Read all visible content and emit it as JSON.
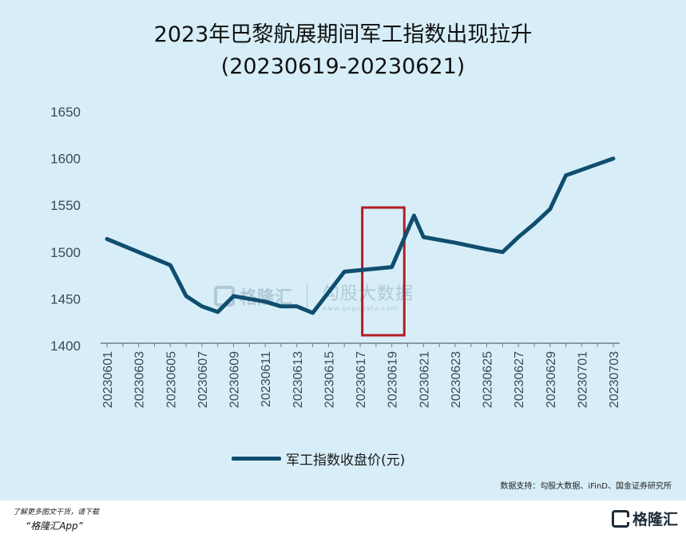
{
  "title": {
    "line1": "2023年巴黎航展期间军工指数出现拉升",
    "line2": "(20230619-20230621)"
  },
  "legend": {
    "label": "军工指数收盘价(元)"
  },
  "source": "数据支持：勾股大数据、iFinD、国金证券研究所",
  "footer": {
    "note": "了解更多图文干货，请下载",
    "app": "“格隆汇App”"
  },
  "logo": {
    "name": "格隆汇"
  },
  "watermark": {
    "name": "格隆汇",
    "brand": "勾股大数据",
    "url": "www.gogudata.com"
  },
  "colors": {
    "background": "#d7eef8",
    "line": "#0f4e6e",
    "highlight_box": "#b01e23",
    "axis": "#6f7f88"
  },
  "chart_data": {
    "type": "line",
    "title": "2023年巴黎航展期间军工指数出现拉升 (20230619-20230621)",
    "xlabel": "",
    "ylabel": "",
    "ylim": [
      1400,
      1650
    ],
    "yticks": [
      1400,
      1450,
      1500,
      1550,
      1600,
      1650
    ],
    "grid": false,
    "legend_position": "bottom",
    "x_tick_labels": [
      "20230601",
      "20230603",
      "20230605",
      "20230607",
      "20230609",
      "20230611",
      "20230613",
      "20230615",
      "20230617",
      "20230619",
      "20230621",
      "20230623",
      "20230625",
      "20230627",
      "20230629",
      "20230701",
      "20230703"
    ],
    "highlight": {
      "from": "20230619",
      "to": "20230621"
    },
    "series": [
      {
        "name": "军工指数收盘价(元)",
        "points": [
          {
            "x": 0.0,
            "y": 1514
          },
          {
            "x": 1.0,
            "y": 1500
          },
          {
            "x": 2.0,
            "y": 1486
          },
          {
            "x": 2.5,
            "y": 1453
          },
          {
            "x": 3.0,
            "y": 1442
          },
          {
            "x": 3.5,
            "y": 1436
          },
          {
            "x": 4.0,
            "y": 1453
          },
          {
            "x": 5.0,
            "y": 1447
          },
          {
            "x": 5.5,
            "y": 1442
          },
          {
            "x": 6.0,
            "y": 1442
          },
          {
            "x": 6.5,
            "y": 1435
          },
          {
            "x": 7.5,
            "y": 1479
          },
          {
            "x": 9.0,
            "y": 1484
          },
          {
            "x": 9.7,
            "y": 1539
          },
          {
            "x": 10.0,
            "y": 1516
          },
          {
            "x": 11.0,
            "y": 1510
          },
          {
            "x": 12.0,
            "y": 1503
          },
          {
            "x": 12.5,
            "y": 1500
          },
          {
            "x": 13.0,
            "y": 1516
          },
          {
            "x": 13.5,
            "y": 1530
          },
          {
            "x": 14.0,
            "y": 1546
          },
          {
            "x": 14.5,
            "y": 1582
          },
          {
            "x": 15.0,
            "y": 1588
          },
          {
            "x": 16.0,
            "y": 1600
          }
        ]
      }
    ]
  }
}
